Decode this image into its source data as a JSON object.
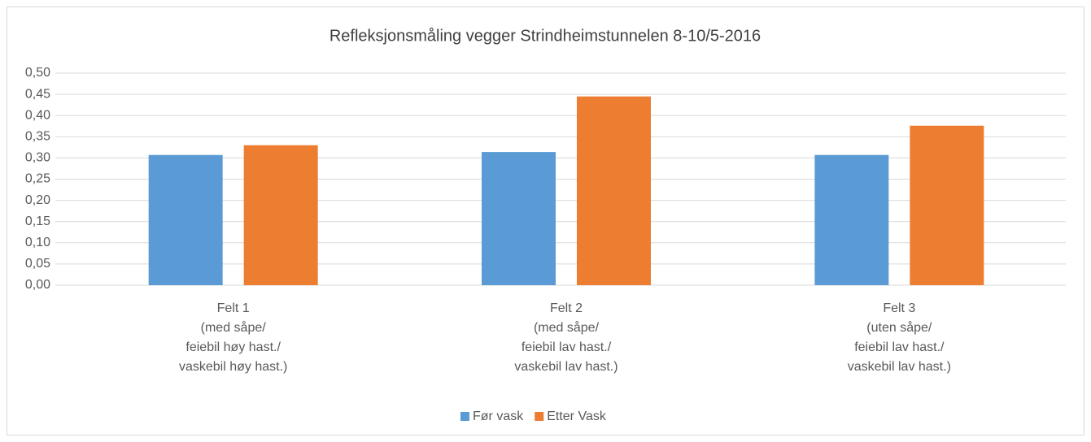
{
  "chart_data": {
    "type": "bar",
    "title": "Refleksjonsmåling vegger Strindheimstunnelen 8-10/5-2016",
    "categories": [
      [
        "Felt 1",
        "(med såpe/",
        "feiebil høy hast./",
        "vaskebil høy hast.)"
      ],
      [
        "Felt 2",
        "(med såpe/",
        "feiebil lav hast./",
        "vaskebil lav hast.)"
      ],
      [
        "Felt 3",
        "(uten såpe/",
        "feiebil lav hast./",
        "vaskebil lav hast.)"
      ]
    ],
    "series": [
      {
        "name": "Før vask",
        "color": "#5b9bd5",
        "values": [
          0.307,
          0.314,
          0.307
        ]
      },
      {
        "name": "Etter Vask",
        "color": "#ed7d31",
        "values": [
          0.33,
          0.445,
          0.376
        ]
      }
    ],
    "ylim": [
      0,
      0.5
    ],
    "yticks": [
      {
        "value": 0,
        "label": "0,00"
      },
      {
        "value": 0.05,
        "label": "0,05"
      },
      {
        "value": 0.1,
        "label": "0,10"
      },
      {
        "value": 0.15,
        "label": "0,15"
      },
      {
        "value": 0.2,
        "label": "0,20"
      },
      {
        "value": 0.25,
        "label": "0,25"
      },
      {
        "value": 0.3,
        "label": "0,30"
      },
      {
        "value": 0.35,
        "label": "0,35"
      },
      {
        "value": 0.4,
        "label": "0,40"
      },
      {
        "value": 0.45,
        "label": "0,45"
      },
      {
        "value": 0.5,
        "label": "0,50"
      }
    ],
    "grid": true,
    "legend": "bottom"
  }
}
